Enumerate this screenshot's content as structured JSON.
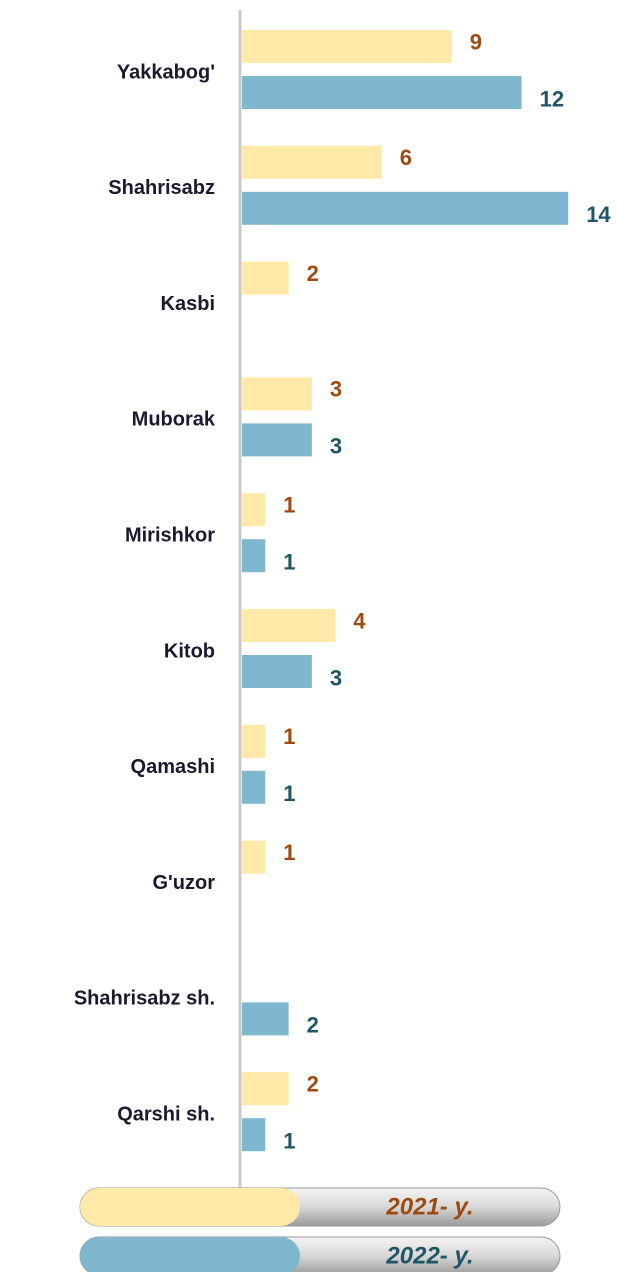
{
  "chart_data": {
    "type": "barh",
    "categories": [
      "Yakkabog'",
      "Shahrisabz",
      "Kasbi",
      "Muborak",
      "Mirishkor",
      "Kitob",
      "Qamashi",
      "G'uzor",
      "Shahrisabz sh.",
      "Qarshi sh."
    ],
    "series": [
      {
        "name": "2021- y.",
        "color": "#FFE9A8",
        "label_color": "#9C4A0F",
        "values": [
          9,
          6,
          2,
          3,
          1,
          4,
          1,
          1,
          null,
          2
        ]
      },
      {
        "name": "2022- y.",
        "color": "#7FB8CE",
        "label_color": "#1F5566",
        "values": [
          12,
          14,
          null,
          3,
          1,
          3,
          1,
          null,
          2,
          1
        ]
      }
    ]
  }
}
